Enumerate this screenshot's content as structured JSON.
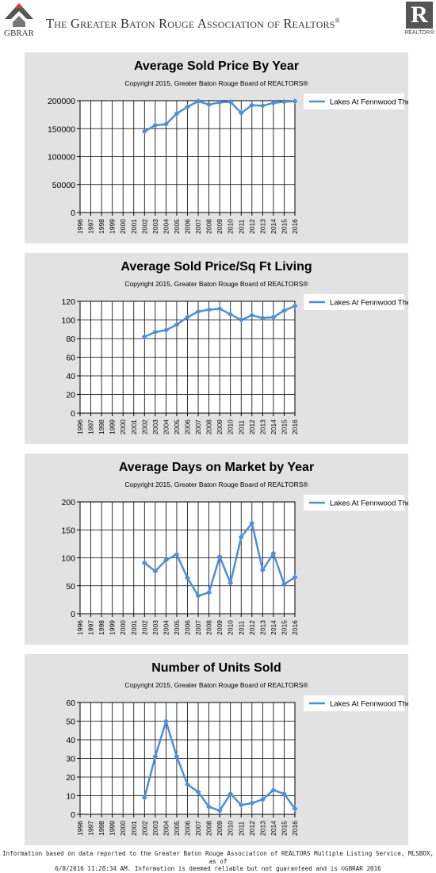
{
  "header": {
    "logo_abbr": "GBRAR",
    "title": "The Greater Baton Rouge Association of Realtors",
    "title_mark": "®",
    "realtor_mark": "R",
    "realtor_text": "REALTOR®"
  },
  "colors": {
    "series": "#4a8fe0",
    "panel": "#e2e2e2",
    "logo_red": "#d9392b"
  },
  "chart_data": [
    {
      "type": "line",
      "title": "Average Sold Price By Year",
      "subtitle": "Copyright 2015, Greater Baton Rouge Board of REALTORS®",
      "legend_position": "top-right",
      "grid": true,
      "ylim": [
        0,
        200000
      ],
      "yticks": [
        "200000",
        "150000",
        "100000",
        "50000",
        "0"
      ],
      "x": [
        "1996",
        "1997",
        "1998",
        "1999",
        "2000",
        "2001",
        "2002",
        "2003",
        "2004",
        "2005",
        "2006",
        "2007",
        "2008",
        "2009",
        "2010",
        "2011",
        "2012",
        "2013",
        "2014",
        "2015",
        "2016"
      ],
      "series": [
        {
          "name": "Lakes At Fennwood The",
          "values": [
            null,
            null,
            null,
            null,
            null,
            null,
            145000,
            156000,
            158000,
            177000,
            189000,
            199000,
            193000,
            197000,
            198000,
            178000,
            192000,
            191000,
            196000,
            198000,
            199000
          ]
        }
      ]
    },
    {
      "type": "line",
      "title": "Average Sold Price/Sq Ft Living",
      "subtitle": "Copyright 2015, Greater Baton Rouge Board of REALTORS®",
      "legend_position": "top-right",
      "grid": true,
      "ylim": [
        0,
        120
      ],
      "yticks": [
        "120",
        "100",
        "80",
        "60",
        "40",
        "20",
        "0"
      ],
      "x": [
        "1996",
        "1997",
        "1998",
        "1999",
        "2000",
        "2001",
        "2002",
        "2003",
        "2004",
        "2005",
        "2006",
        "2007",
        "2008",
        "2009",
        "2010",
        "2011",
        "2012",
        "2013",
        "2014",
        "2015",
        "2016"
      ],
      "series": [
        {
          "name": "Lakes At Fennwood The",
          "values": [
            null,
            null,
            null,
            null,
            null,
            null,
            82,
            87,
            89,
            95,
            103,
            109,
            111,
            112,
            106,
            100,
            105,
            102,
            103,
            110,
            115
          ]
        }
      ]
    },
    {
      "type": "line",
      "title": "Average Days on Market by Year",
      "subtitle": "Copyright 2015, Greater Baton Rouge Board of REALTORS®",
      "legend_position": "top-right",
      "grid": true,
      "ylim": [
        0,
        200
      ],
      "yticks": [
        "200",
        "150",
        "100",
        "50",
        "0"
      ],
      "x": [
        "1996",
        "1997",
        "1998",
        "1999",
        "2000",
        "2001",
        "2002",
        "2003",
        "2004",
        "2005",
        "2006",
        "2007",
        "2008",
        "2009",
        "2010",
        "2011",
        "2012",
        "2013",
        "2014",
        "2015",
        "2016"
      ],
      "series": [
        {
          "name": "Lakes At Fennwood The",
          "values": [
            null,
            null,
            null,
            null,
            null,
            null,
            91,
            76,
            96,
            106,
            64,
            32,
            38,
            102,
            55,
            137,
            162,
            78,
            108,
            53,
            65
          ]
        }
      ]
    },
    {
      "type": "line",
      "title": "Number of Units Sold",
      "subtitle": "Copyright 2015, Greater Baton Rouge Board of REALTORS®",
      "legend_position": "top-right",
      "grid": true,
      "ylim": [
        0,
        60
      ],
      "yticks": [
        "60",
        "50",
        "40",
        "30",
        "20",
        "10",
        "0"
      ],
      "x": [
        "1996",
        "1997",
        "1998",
        "1999",
        "2000",
        "2001",
        "2002",
        "2003",
        "2004",
        "2005",
        "2006",
        "2007",
        "2008",
        "2009",
        "2010",
        "2011",
        "2012",
        "2013",
        "2014",
        "2015",
        "2016"
      ],
      "series": [
        {
          "name": "Lakes At Fennwood The",
          "values": [
            null,
            null,
            null,
            null,
            null,
            null,
            9,
            31,
            50,
            31,
            16,
            12,
            4,
            2,
            11,
            5,
            6,
            8,
            13,
            11,
            3
          ]
        }
      ]
    }
  ],
  "footer": {
    "line1": "Information based on data reported to the Greater Baton Rouge Association of REALTORS Multiple Listing Service, MLSBOX, as of",
    "line2": "6/8/2016 11:28:34 AM. Information is deemed reliable but not guaranteed and is ©GBRAR 2016"
  }
}
